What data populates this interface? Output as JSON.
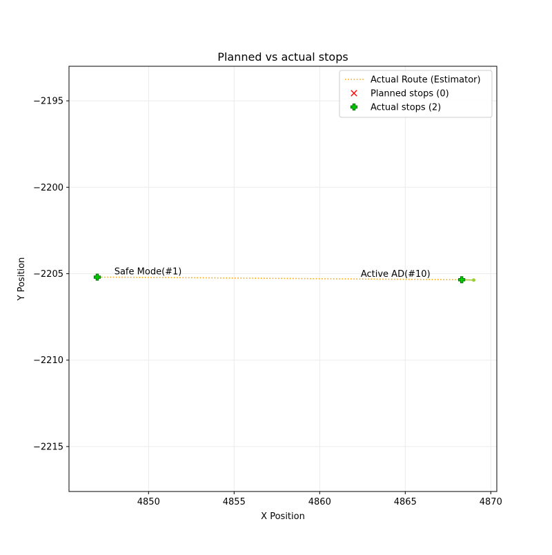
{
  "chart_data": {
    "type": "scatter",
    "title": "Planned vs actual stops",
    "xlabel": "X Position",
    "ylabel": "Y Position",
    "xlim": [
      4845.35,
      4870.35
    ],
    "ylim": [
      -2217.6,
      -2193.0
    ],
    "x_ticks": [
      4850,
      4855,
      4860,
      4865,
      4870
    ],
    "x_tick_labels": [
      "4850",
      "4855",
      "4860",
      "4865",
      "4870"
    ],
    "y_ticks": [
      -2195,
      -2200,
      -2205,
      -2210,
      -2215
    ],
    "y_tick_labels": [
      "−2195",
      "−2200",
      "−2205",
      "−2210",
      "−2215"
    ],
    "grid": true,
    "legend_position": "top-right",
    "series": [
      {
        "name": "Actual Route (Estimator)",
        "kind": "line",
        "style": "dotted",
        "color": "#ffa500",
        "x": [
          4846.9,
          4848.0,
          4852.0,
          4856.0,
          4860.0,
          4864.0,
          4866.0,
          4868.3,
          4869.0
        ],
        "y": [
          -2205.2,
          -2205.2,
          -2205.23,
          -2205.26,
          -2205.29,
          -2205.32,
          -2205.33,
          -2205.35,
          -2205.37
        ]
      },
      {
        "name": "Planned stops (0)",
        "kind": "scatter",
        "marker": "x",
        "color": "#ff0000",
        "x": [],
        "y": []
      },
      {
        "name": "Actual stops (2)",
        "kind": "scatter",
        "marker": "plus",
        "color": "#00cc00",
        "edge_color": "#006400",
        "x": [
          4847.0,
          4868.3
        ],
        "y": [
          -2205.2,
          -2205.35
        ]
      }
    ],
    "segments": [
      {
        "x": [
          4846.9,
          4847.3
        ],
        "y": [
          -2205.2,
          -2205.2
        ],
        "color": "#9acd32"
      },
      {
        "x": [
          4868.3,
          4869.0
        ],
        "y": [
          -2205.35,
          -2205.37
        ],
        "color": "#9acd32"
      }
    ],
    "end_point": {
      "x": 4869.0,
      "y": -2205.37,
      "color": "#9acd32"
    },
    "annotations": [
      {
        "text": "Safe Mode(#1)",
        "x": 4848.0,
        "y": -2205.0
      },
      {
        "text": "Active AD(#10)",
        "x": 4862.4,
        "y": -2205.15
      }
    ],
    "colors": {
      "grid": "#ebebeb",
      "axis": "#000000"
    }
  }
}
